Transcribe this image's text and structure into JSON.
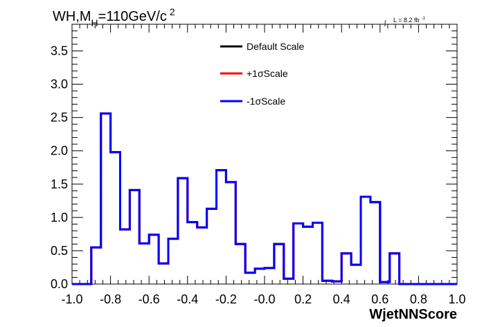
{
  "chart_data": {
    "type": "histogram",
    "title_main": "WH,M",
    "title_sub": "H",
    "title_rest": "=110GeV/c",
    "title_sup": "2",
    "lumi_label": "L = 8.2 fb",
    "lumi_sup": "-1",
    "xlabel": "WjetNNScore",
    "ylabel": "",
    "xlim": [
      -1.0,
      1.0
    ],
    "ylim": [
      0,
      3.9
    ],
    "x_ticks": [
      -1.0,
      -0.8,
      -0.6,
      -0.4,
      -0.2,
      0.0,
      0.2,
      0.4,
      0.6,
      0.8,
      1.0
    ],
    "x_tick_labels": [
      "-1.0",
      "-0.8",
      "-0.6",
      "-0.4",
      "-0.2",
      "-0.0",
      "0.2",
      "0.4",
      "0.6",
      "0.8",
      "1.0"
    ],
    "y_ticks": [
      0.0,
      0.5,
      1.0,
      1.5,
      2.0,
      2.5,
      3.0,
      3.5
    ],
    "y_tick_labels": [
      "0.0",
      "0.5",
      "1.0",
      "1.5",
      "2.0",
      "2.5",
      "3.0",
      "3.5"
    ],
    "bin_edges": [
      -1.0,
      -0.95,
      -0.9,
      -0.85,
      -0.8,
      -0.75,
      -0.7,
      -0.65,
      -0.6,
      -0.55,
      -0.5,
      -0.45,
      -0.4,
      -0.35,
      -0.3,
      -0.25,
      -0.2,
      -0.15,
      -0.1,
      -0.05,
      0.0,
      0.05,
      0.1,
      0.15,
      0.2,
      0.25,
      0.3,
      0.35,
      0.4,
      0.45,
      0.5,
      0.55,
      0.6,
      0.65,
      0.7,
      0.75,
      0.8,
      0.85,
      0.9,
      0.95,
      1.0
    ],
    "series": [
      {
        "name": "Default Scale",
        "color": "#000000",
        "values": [
          0,
          0,
          0.55,
          2.56,
          1.98,
          0.82,
          1.41,
          0.61,
          0.74,
          0.31,
          0.68,
          1.59,
          0.93,
          0.85,
          1.13,
          1.71,
          1.53,
          0.6,
          0.17,
          0.23,
          0.24,
          0.6,
          0.08,
          0.91,
          0.86,
          0.92,
          0.05,
          0.04,
          0.46,
          0.29,
          1.31,
          1.23,
          0.03,
          0.46,
          0.0,
          0.0,
          0.0,
          0.0,
          0.0,
          0.0
        ]
      },
      {
        "name": "+1σScale",
        "color": "#ff0000",
        "values": [
          0,
          0,
          0.55,
          2.56,
          1.98,
          0.82,
          1.41,
          0.61,
          0.74,
          0.31,
          0.68,
          1.59,
          0.93,
          0.85,
          1.13,
          1.71,
          1.53,
          0.6,
          0.17,
          0.23,
          0.24,
          0.6,
          0.08,
          0.91,
          0.86,
          0.92,
          0.05,
          0.04,
          0.46,
          0.29,
          1.31,
          1.23,
          0.03,
          0.46,
          0.0,
          0.0,
          0.0,
          0.0,
          0.0,
          0.0
        ]
      },
      {
        "name": "-1σScale",
        "color": "#0000ff",
        "values": [
          0,
          0,
          0.55,
          2.56,
          1.98,
          0.82,
          1.41,
          0.61,
          0.74,
          0.31,
          0.68,
          1.59,
          0.93,
          0.85,
          1.13,
          1.71,
          1.53,
          0.6,
          0.17,
          0.23,
          0.24,
          0.6,
          0.08,
          0.91,
          0.86,
          0.92,
          0.05,
          0.04,
          0.46,
          0.29,
          1.31,
          1.23,
          0.03,
          0.46,
          0.0,
          0.0,
          0.0,
          0.0,
          0.0,
          0.0
        ]
      }
    ],
    "grid": false,
    "legend_position": "top-center"
  }
}
